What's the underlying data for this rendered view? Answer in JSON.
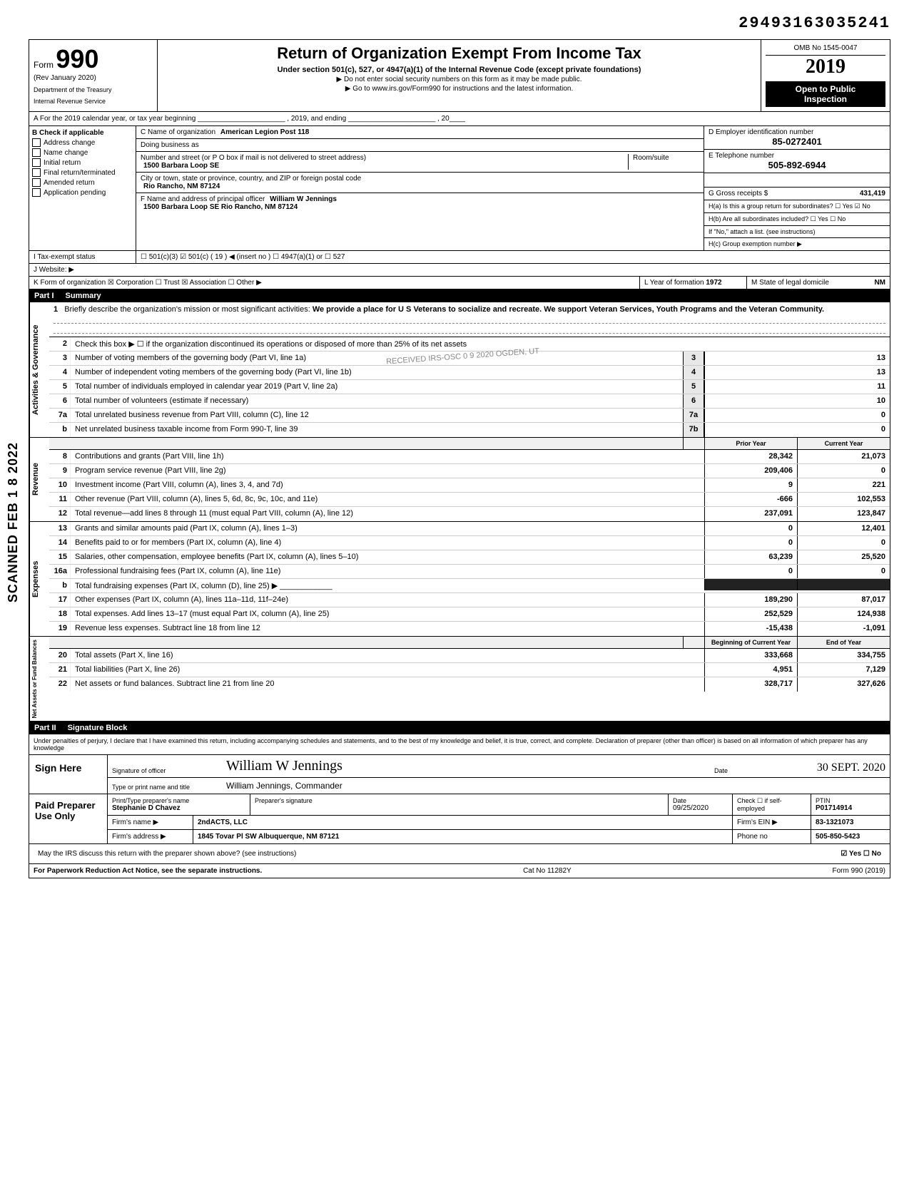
{
  "top_id": "29493163035241",
  "scanned_stamp": "SCANNED FEB 1 8 2022",
  "header": {
    "form_word": "Form",
    "form_no": "990",
    "rev": "(Rev  January 2020)",
    "dept1": "Department of the Treasury",
    "dept2": "Internal Revenue Service",
    "title": "Return of Organization Exempt From Income Tax",
    "subtitle": "Under section 501(c), 527, or 4947(a)(1) of the Internal Revenue Code (except private foundations)",
    "sub2a": "▶ Do not enter social security numbers on this form as it may be made public.",
    "sub2b": "▶ Go to www.irs.gov/Form990 for instructions and the latest information.",
    "omb": "OMB No 1545-0047",
    "year": "2019",
    "inspect1": "Open to Public",
    "inspect2": "Inspection"
  },
  "row_a": "A   For the 2019 calendar year, or tax year beginning ______________________ , 2019, and ending ______________________ , 20____",
  "col_b": {
    "hdr": "B   Check if applicable",
    "items": [
      "Address change",
      "Name change",
      "Initial return",
      "Final return/terminated",
      "Amended return",
      "Application pending"
    ]
  },
  "col_c": {
    "c_name_lbl": "C Name of organization",
    "c_name": "American Legion Post 118",
    "dba": "Doing business as",
    "street_lbl": "Number and street (or P O  box if mail is not delivered to street address)",
    "street": "1500 Barbara Loop SE",
    "room_lbl": "Room/suite",
    "city_lbl": "City or town, state or province, country, and ZIP or foreign postal code",
    "city": "Rio Rancho, NM  87124",
    "f_lbl": "F Name and address of principal officer",
    "f_name": "William W Jennings",
    "f_addr": "1500 Barbara Loop SE Rio Rancho, NM 87124"
  },
  "col_d": {
    "d_lbl": "D Employer identification number",
    "d_val": "85-0272401",
    "e_lbl": "E Telephone number",
    "e_val": "505-892-6944",
    "g_lbl": "G Gross receipts $",
    "g_val": "431,419",
    "h_a": "H(a) Is this a group return for subordinates? ☐ Yes ☑ No",
    "h_b": "H(b) Are all subordinates included? ☐ Yes ☐ No",
    "h_note": "If \"No,\" attach a list. (see instructions)",
    "h_c": "H(c) Group exemption number ▶"
  },
  "row_i": {
    "label": "I     Tax-exempt status",
    "opts": "☐ 501(c)(3)    ☑ 501(c) (  19  ) ◀ (insert no )    ☐ 4947(a)(1) or   ☐ 527"
  },
  "row_j": {
    "label": "J     Website: ▶"
  },
  "row_k": {
    "label": "K    Form of organization ☒ Corporation  ☐ Trust  ☒ Association  ☐ Other ▶",
    "year_lbl": "L Year of formation",
    "year_val": "1972",
    "state_lbl": "M State of legal domicile",
    "state_val": "NM"
  },
  "part1": {
    "label": "Part I",
    "name": "Summary"
  },
  "mission": {
    "num": "1",
    "lead": "Briefly describe the organization's mission or most significant activities:",
    "text": "We provide a place for U S Veterans to socialize and recreate. We support Veteran Services, Youth Programs and the Veteran Community."
  },
  "line2": "Check this box ▶ ☐ if the organization discontinued its operations or disposed of more than 25% of its net assets",
  "stamp_text": "RECEIVED IRS-OSC 0 9 2020 OGDEN, UT",
  "governance": {
    "sidebar": "Activities & Governance",
    "lines": [
      {
        "n": "3",
        "t": "Number of voting members of the governing body (Part VI, line 1a)",
        "b": "3",
        "v": "13"
      },
      {
        "n": "4",
        "t": "Number of independent voting members of the governing body (Part VI, line 1b)",
        "b": "4",
        "v": "13"
      },
      {
        "n": "5",
        "t": "Total number of individuals employed in calendar year 2019 (Part V, line 2a)",
        "b": "5",
        "v": "11"
      },
      {
        "n": "6",
        "t": "Total number of volunteers (estimate if necessary)",
        "b": "6",
        "v": "10"
      },
      {
        "n": "7a",
        "t": "Total unrelated business revenue from Part VIII, column (C), line 12",
        "b": "7a",
        "v": "0"
      },
      {
        "n": "b",
        "t": "Net unrelated business taxable income from Form 990-T, line 39",
        "b": "7b",
        "v": "0"
      }
    ]
  },
  "colheaders": {
    "prior": "Prior Year",
    "current": "Current Year"
  },
  "revenue": {
    "sidebar": "Revenue",
    "lines": [
      {
        "n": "8",
        "t": "Contributions and grants (Part VIII, line 1h)",
        "py": "28,342",
        "cy": "21,073"
      },
      {
        "n": "9",
        "t": "Program service revenue (Part VIII, line 2g)",
        "py": "209,406",
        "cy": "0"
      },
      {
        "n": "10",
        "t": "Investment income (Part VIII, column (A), lines 3, 4, and 7d)",
        "py": "9",
        "cy": "221"
      },
      {
        "n": "11",
        "t": "Other revenue (Part VIII, column (A), lines 5, 6d, 8c, 9c, 10c, and 11e)",
        "py": "-666",
        "cy": "102,553"
      },
      {
        "n": "12",
        "t": "Total revenue—add lines 8 through 11 (must equal Part VIII, column (A), line 12)",
        "py": "237,091",
        "cy": "123,847"
      }
    ]
  },
  "expenses": {
    "sidebar": "Expenses",
    "lines": [
      {
        "n": "13",
        "t": "Grants and similar amounts paid (Part IX, column (A), lines 1–3)",
        "py": "0",
        "cy": "12,401"
      },
      {
        "n": "14",
        "t": "Benefits paid to or for members (Part IX, column (A), line 4)",
        "py": "0",
        "cy": "0"
      },
      {
        "n": "15",
        "t": "Salaries, other compensation, employee benefits (Part IX, column (A), lines 5–10)",
        "py": "63,239",
        "cy": "25,520"
      },
      {
        "n": "16a",
        "t": "Professional fundraising fees (Part IX, column (A),  line 11e)",
        "py": "0",
        "cy": "0"
      },
      {
        "n": "b",
        "t": "Total fundraising expenses (Part IX, column (D), line 25) ▶ ____________",
        "py": "",
        "cy": "",
        "dark": true
      },
      {
        "n": "17",
        "t": "Other expenses (Part IX, column (A), lines 11a–11d, 11f–24e)",
        "py": "189,290",
        "cy": "87,017"
      },
      {
        "n": "18",
        "t": "Total expenses. Add lines 13–17 (must equal Part IX, column (A), line 25)",
        "py": "252,529",
        "cy": "124,938"
      },
      {
        "n": "19",
        "t": "Revenue less expenses. Subtract line 18 from line 12",
        "py": "-15,438",
        "cy": "-1,091"
      }
    ]
  },
  "colheaders2": {
    "prior": "Beginning of Current Year",
    "current": "End of Year"
  },
  "netassets": {
    "sidebar": "Net Assets or Fund Balances",
    "lines": [
      {
        "n": "20",
        "t": "Total assets (Part X, line 16)",
        "py": "333,668",
        "cy": "334,755"
      },
      {
        "n": "21",
        "t": "Total liabilities (Part X, line 26)",
        "py": "4,951",
        "cy": "7,129"
      },
      {
        "n": "22",
        "t": "Net assets or fund balances. Subtract line 21 from line 20",
        "py": "328,717",
        "cy": "327,626"
      }
    ]
  },
  "part2": {
    "label": "Part II",
    "name": "Signature Block"
  },
  "sig_note": "Under penalties of perjury, I declare that I have examined this return, including accompanying schedules and statements, and to the best of my knowledge and belief, it is true, correct, and complete. Declaration of preparer (other than officer) is based on all information of which preparer has any knowledge",
  "sign": {
    "left": "Sign Here",
    "sig_lbl": "Signature of officer",
    "sig_val": "William W Jennings",
    "date_lbl": "Date",
    "date_val": "30 SEPT. 2020",
    "name_lbl": "Type or print name and title",
    "name_val": "William Jennings, Commander"
  },
  "preparer": {
    "left": "Paid Preparer Use Only",
    "name_lbl": "Print/Type preparer's name",
    "name_val": "Stephanie D Chavez",
    "sig_lbl": "Preparer's signature",
    "date_lbl": "Date",
    "date_val": "09/25/2020",
    "check_lbl": "Check ☐ if self-employed",
    "ptin_lbl": "PTIN",
    "ptin_val": "P01714914",
    "firm_name_lbl": "Firm's name ▶",
    "firm_name": "2ndACTS, LLC",
    "firm_ein_lbl": "Firm's EIN ▶",
    "firm_ein": "83-1321073",
    "firm_addr_lbl": "Firm's address ▶",
    "firm_addr": "1845 Tovar Pl SW Albuquerque, NM 87121",
    "phone_lbl": "Phone no",
    "phone": "505-850-5423"
  },
  "discuss": "May the IRS discuss this return with the preparer shown above? (see instructions)",
  "discuss_ans": "☑ Yes   ☐ No",
  "footer": {
    "left": "For Paperwork Reduction Act Notice, see the separate instructions.",
    "mid": "Cat No  11282Y",
    "right": "Form 990 (2019)"
  }
}
